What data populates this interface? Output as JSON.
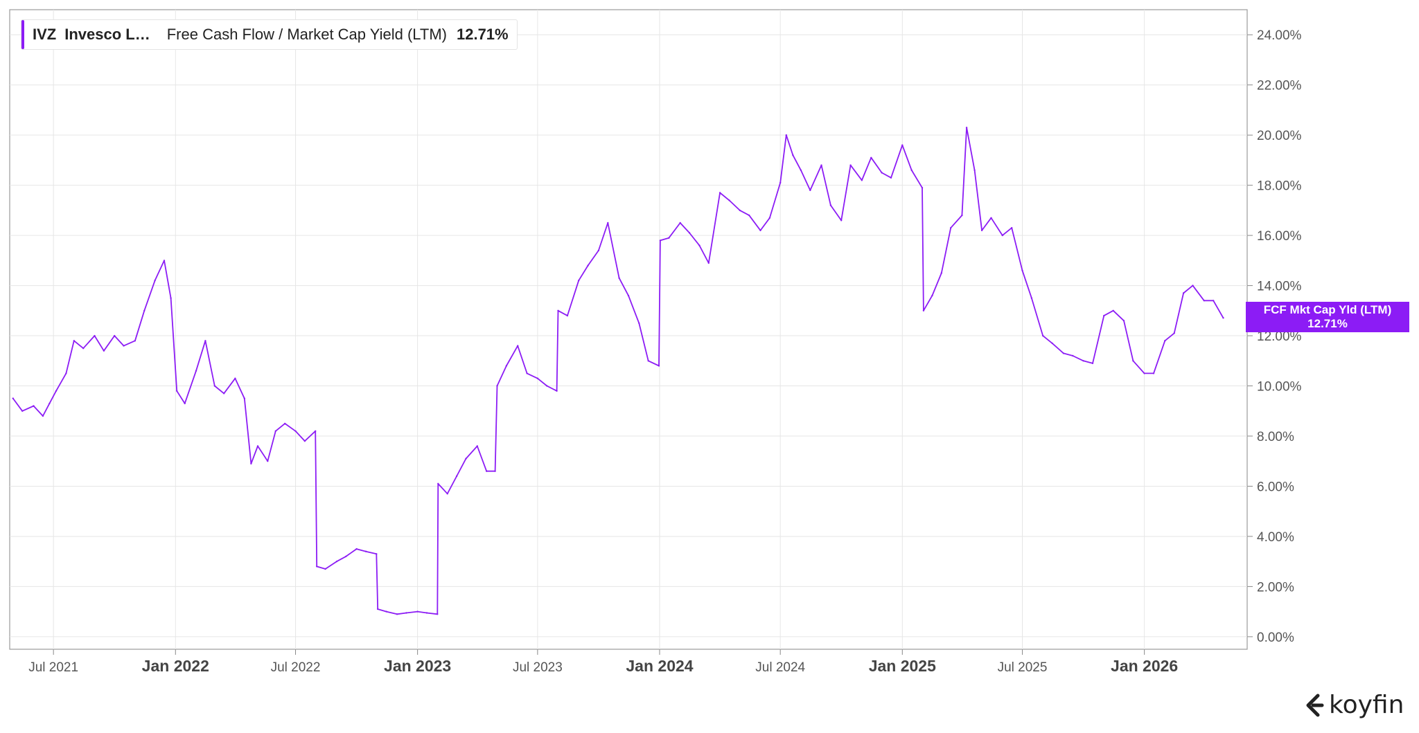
{
  "legend": {
    "ticker": "IVZ",
    "company": "Invesco L…",
    "metric": "Free Cash Flow / Market Cap Yield (LTM)",
    "value": "12.71%",
    "color": "#8c1cf5"
  },
  "last_value_tag": {
    "label": "FCF Mkt Cap Yld (LTM)",
    "value": "12.71%"
  },
  "brand": {
    "name": "koyfin",
    "icon": "koyfin-logo-icon"
  },
  "chart_data": {
    "type": "line",
    "series": [
      {
        "name": "FCF Mkt Cap Yld (LTM)",
        "color": "#8c1cf5",
        "x": [
          "2021-05-01",
          "2021-05-15",
          "2021-06-01",
          "2021-06-15",
          "2021-06-25",
          "2021-07-05",
          "2021-07-20",
          "2021-08-01",
          "2021-08-15",
          "2021-09-01",
          "2021-09-15",
          "2021-10-01",
          "2021-10-15",
          "2021-11-01",
          "2021-11-15",
          "2021-12-01",
          "2021-12-15",
          "2021-12-25",
          "2022-01-03",
          "2022-01-15",
          "2022-02-01",
          "2022-02-15",
          "2022-03-01",
          "2022-03-15",
          "2022-04-01",
          "2022-04-15",
          "2022-04-25",
          "2022-05-05",
          "2022-05-20",
          "2022-06-01",
          "2022-06-15",
          "2022-07-01",
          "2022-07-15",
          "2022-07-31",
          "2022-08-02",
          "2022-08-15",
          "2022-09-01",
          "2022-09-15",
          "2022-10-01",
          "2022-10-15",
          "2022-10-31",
          "2022-11-02",
          "2022-11-15",
          "2022-12-01",
          "2022-12-15",
          "2023-01-01",
          "2023-01-15",
          "2023-01-31",
          "2023-02-01",
          "2023-02-15",
          "2023-03-01",
          "2023-03-15",
          "2023-04-01",
          "2023-04-15",
          "2023-04-28",
          "2023-05-01",
          "2023-05-15",
          "2023-06-01",
          "2023-06-15",
          "2023-07-01",
          "2023-07-15",
          "2023-07-30",
          "2023-08-01",
          "2023-08-15",
          "2023-09-01",
          "2023-09-15",
          "2023-10-01",
          "2023-10-15",
          "2023-11-01",
          "2023-11-15",
          "2023-12-01",
          "2023-12-15",
          "2023-12-31",
          "2024-01-02",
          "2024-01-15",
          "2024-02-01",
          "2024-02-15",
          "2024-03-01",
          "2024-03-15",
          "2024-04-01",
          "2024-04-15",
          "2024-05-01",
          "2024-05-15",
          "2024-06-01",
          "2024-06-15",
          "2024-07-01",
          "2024-07-10",
          "2024-07-20",
          "2024-08-01",
          "2024-08-15",
          "2024-09-01",
          "2024-09-15",
          "2024-10-01",
          "2024-10-15",
          "2024-11-01",
          "2024-11-15",
          "2024-12-01",
          "2024-12-15",
          "2025-01-01",
          "2025-01-15",
          "2025-01-31",
          "2025-02-02",
          "2025-02-15",
          "2025-03-01",
          "2025-03-15",
          "2025-04-01",
          "2025-04-08",
          "2025-04-20",
          "2025-05-01",
          "2025-05-15",
          "2025-06-01",
          "2025-06-15",
          "2025-07-01",
          "2025-07-15",
          "2025-08-01",
          "2025-08-15",
          "2025-09-01",
          "2025-09-15",
          "2025-10-01",
          "2025-10-15",
          "2025-11-01",
          "2025-11-15",
          "2025-12-01",
          "2025-12-15",
          "2026-01-01",
          "2026-01-15",
          "2026-02-01",
          "2026-02-15",
          "2026-03-01",
          "2026-03-15",
          "2026-04-01",
          "2026-04-15",
          "2026-04-30"
        ],
        "y": [
          9.5,
          9.0,
          9.2,
          8.8,
          9.3,
          9.8,
          10.5,
          11.8,
          11.5,
          12.0,
          11.4,
          12.0,
          11.6,
          11.8,
          13.0,
          14.2,
          15.0,
          13.5,
          9.8,
          9.3,
          10.6,
          11.8,
          10.0,
          9.7,
          10.3,
          9.5,
          6.9,
          7.6,
          7.0,
          8.2,
          8.5,
          8.2,
          7.8,
          8.2,
          2.8,
          2.7,
          3.0,
          3.2,
          3.5,
          3.4,
          3.3,
          1.1,
          1.0,
          0.9,
          0.95,
          1.0,
          0.95,
          0.9,
          6.1,
          5.7,
          6.4,
          7.1,
          7.6,
          6.6,
          6.6,
          10.0,
          10.8,
          11.6,
          10.5,
          10.3,
          10.0,
          9.8,
          13.0,
          12.8,
          14.2,
          14.8,
          15.4,
          16.5,
          14.3,
          13.6,
          12.5,
          11.0,
          10.8,
          15.8,
          15.9,
          16.5,
          16.1,
          15.6,
          14.9,
          17.7,
          17.4,
          17.0,
          16.8,
          16.2,
          16.7,
          18.1,
          20.0,
          19.2,
          18.6,
          17.8,
          18.8,
          17.2,
          16.6,
          18.8,
          18.2,
          19.1,
          18.5,
          18.3,
          19.6,
          18.6,
          17.9,
          13.0,
          13.6,
          14.5,
          16.3,
          16.8,
          20.3,
          18.6,
          16.2,
          16.7,
          16.0,
          16.3,
          14.6,
          13.5,
          12.0,
          11.7,
          11.3,
          11.2,
          11.0,
          10.9,
          12.8,
          13.0,
          12.6,
          11.0,
          10.5,
          10.5,
          11.8,
          12.1,
          13.7,
          14.0,
          13.4,
          13.4,
          12.71
        ]
      }
    ],
    "x_ticks": [
      {
        "label": "Jul 2021",
        "date": "2021-07-01",
        "major": false
      },
      {
        "label": "Jan 2022",
        "date": "2022-01-01",
        "major": true
      },
      {
        "label": "Jul 2022",
        "date": "2022-07-01",
        "major": false
      },
      {
        "label": "Jan 2023",
        "date": "2023-01-01",
        "major": true
      },
      {
        "label": "Jul 2023",
        "date": "2023-07-01",
        "major": false
      },
      {
        "label": "Jan 2024",
        "date": "2024-01-01",
        "major": true
      },
      {
        "label": "Jul 2024",
        "date": "2024-07-01",
        "major": false
      },
      {
        "label": "Jan 2025",
        "date": "2025-01-01",
        "major": true
      },
      {
        "label": "Jul 2025",
        "date": "2025-07-01",
        "major": false
      },
      {
        "label": "Jan 2026",
        "date": "2026-01-01",
        "major": true
      }
    ],
    "y_ticks": [
      {
        "value": 0,
        "label": "0.00%"
      },
      {
        "value": 2,
        "label": "2.00%"
      },
      {
        "value": 4,
        "label": "4.00%"
      },
      {
        "value": 6,
        "label": "6.00%"
      },
      {
        "value": 8,
        "label": "8.00%"
      },
      {
        "value": 10,
        "label": "10.00%"
      },
      {
        "value": 12,
        "label": "12.00%"
      },
      {
        "value": 14,
        "label": "14.00%"
      },
      {
        "value": 16,
        "label": "16.00%"
      },
      {
        "value": 18,
        "label": "18.00%"
      },
      {
        "value": 20,
        "label": "20.00%"
      },
      {
        "value": 22,
        "label": "22.00%"
      },
      {
        "value": 24,
        "label": "24.00%"
      }
    ],
    "xlim": [
      "2021-04-26",
      "2026-06-05"
    ],
    "ylim": [
      -0.5,
      25.0
    ],
    "y_axis_side": "right",
    "grid": true
  }
}
